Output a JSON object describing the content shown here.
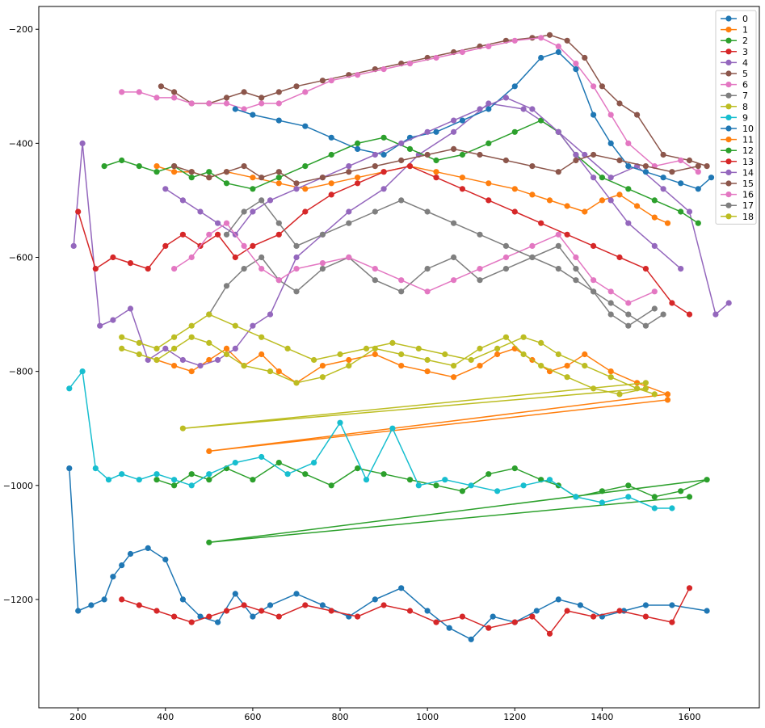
{
  "chart_data": {
    "type": "line",
    "title": "",
    "xlabel": "",
    "ylabel": "",
    "xlim": [
      110,
      1760
    ],
    "ylim": [
      -1390,
      -160
    ],
    "x_ticks": [
      200,
      400,
      600,
      800,
      1000,
      1200,
      1400,
      1600
    ],
    "y_ticks": [
      -200,
      -400,
      -600,
      -800,
      -1000,
      -1200
    ],
    "grid": false,
    "legend_position": "top-right",
    "series": [
      {
        "name": "0",
        "color": "#1f77b4",
        "x": [
          180,
          200,
          230,
          260,
          280,
          300,
          320,
          360,
          400,
          440,
          480,
          520,
          560,
          600,
          640,
          700,
          760,
          820,
          880,
          940,
          1000,
          1050,
          1100,
          1150,
          1200,
          1250,
          1300,
          1350,
          1400,
          1450,
          1500,
          1560,
          1640
        ],
        "y": [
          -970,
          -1220,
          -1210,
          -1200,
          -1160,
          -1140,
          -1120,
          -1110,
          -1130,
          -1200,
          -1230,
          -1240,
          -1190,
          -1230,
          -1210,
          -1190,
          -1210,
          -1230,
          -1200,
          -1180,
          -1220,
          -1250,
          -1270,
          -1230,
          -1240,
          -1220,
          -1200,
          -1210,
          -1230,
          -1220,
          -1210,
          -1210,
          -1220
        ]
      },
      {
        "name": "1",
        "color": "#ff7f0e",
        "x": [
          380,
          420,
          460,
          500,
          540,
          580,
          620,
          660,
          700,
          760,
          820,
          880,
          940,
          1000,
          1060,
          1120,
          1160,
          1200,
          1240,
          1280,
          1320,
          1360,
          1420,
          1480,
          1550,
          500,
          1550
        ],
        "y": [
          -780,
          -790,
          -800,
          -780,
          -760,
          -790,
          -770,
          -800,
          -820,
          -790,
          -780,
          -770,
          -790,
          -800,
          -810,
          -790,
          -770,
          -760,
          -780,
          -800,
          -790,
          -770,
          -800,
          -820,
          -840,
          -940,
          -850
        ]
      },
      {
        "name": "2",
        "color": "#2ca02c",
        "x": [
          380,
          420,
          460,
          500,
          540,
          600,
          660,
          720,
          780,
          840,
          900,
          960,
          1020,
          1080,
          1140,
          1200,
          1260,
          1300,
          1340,
          1400,
          1460,
          1520,
          1580,
          1640,
          500,
          1600
        ],
        "y": [
          -990,
          -1000,
          -980,
          -990,
          -970,
          -990,
          -960,
          -980,
          -1000,
          -970,
          -980,
          -990,
          -1000,
          -1010,
          -980,
          -970,
          -990,
          -1000,
          -1020,
          -1010,
          -1000,
          -1020,
          -1010,
          -990,
          -1100,
          -1020
        ]
      },
      {
        "name": "3",
        "color": "#d62728",
        "x": [
          300,
          340,
          380,
          420,
          460,
          500,
          540,
          580,
          620,
          660,
          720,
          780,
          840,
          900,
          960,
          1020,
          1080,
          1140,
          1200,
          1240,
          1280,
          1320,
          1380,
          1440,
          1500,
          1560,
          1600
        ],
        "y": [
          -1200,
          -1210,
          -1220,
          -1230,
          -1240,
          -1230,
          -1220,
          -1210,
          -1220,
          -1230,
          -1210,
          -1220,
          -1230,
          -1210,
          -1220,
          -1240,
          -1230,
          -1250,
          -1240,
          -1230,
          -1260,
          -1220,
          -1230,
          -1220,
          -1230,
          -1240,
          -1180
        ]
      },
      {
        "name": "4",
        "color": "#9467bd",
        "x": [
          190,
          210,
          250,
          280,
          320,
          360,
          400,
          440,
          480,
          520,
          560,
          600,
          640,
          700,
          760,
          820,
          900,
          980,
          1060,
          1140,
          1220,
          1300,
          1360,
          1420,
          1480,
          1540,
          1600,
          1660,
          1690
        ],
        "y": [
          -580,
          -400,
          -720,
          -710,
          -690,
          -780,
          -760,
          -780,
          -790,
          -780,
          -760,
          -720,
          -700,
          -600,
          -560,
          -520,
          -480,
          -420,
          -380,
          -330,
          -340,
          -380,
          -420,
          -460,
          -440,
          -480,
          -520,
          -700,
          -680
        ]
      },
      {
        "name": "5",
        "color": "#8c564b",
        "x": [
          390,
          420,
          460,
          500,
          540,
          580,
          620,
          660,
          700,
          760,
          820,
          880,
          940,
          1000,
          1060,
          1120,
          1180,
          1240,
          1280,
          1320,
          1360,
          1400,
          1440,
          1480,
          1540,
          1600,
          1640
        ],
        "y": [
          -300,
          -310,
          -330,
          -330,
          -320,
          -310,
          -320,
          -310,
          -300,
          -290,
          -280,
          -270,
          -260,
          -250,
          -240,
          -230,
          -220,
          -215,
          -210,
          -220,
          -250,
          -300,
          -330,
          -350,
          -420,
          -430,
          -440
        ]
      },
      {
        "name": "6",
        "color": "#e377c2",
        "x": [
          300,
          340,
          380,
          420,
          460,
          500,
          540,
          580,
          620,
          660,
          720,
          780,
          840,
          900,
          960,
          1020,
          1080,
          1140,
          1200,
          1260,
          1300,
          1340,
          1380,
          1420,
          1460,
          1520,
          1580,
          1620
        ],
        "y": [
          -310,
          -310,
          -320,
          -320,
          -330,
          -330,
          -330,
          -340,
          -330,
          -330,
          -310,
          -290,
          -280,
          -270,
          -260,
          -250,
          -240,
          -230,
          -220,
          -215,
          -230,
          -260,
          -300,
          -350,
          -400,
          -440,
          -430,
          -450
        ]
      },
      {
        "name": "7",
        "color": "#7f7f7f",
        "x": [
          500,
          540,
          580,
          620,
          660,
          700,
          760,
          820,
          880,
          940,
          1000,
          1060,
          1120,
          1180,
          1240,
          1300,
          1340,
          1380,
          1420,
          1460,
          1520
        ],
        "y": [
          -700,
          -650,
          -620,
          -600,
          -640,
          -660,
          -620,
          -600,
          -640,
          -660,
          -620,
          -600,
          -640,
          -620,
          -600,
          -580,
          -620,
          -660,
          -700,
          -720,
          -690
        ]
      },
      {
        "name": "8",
        "color": "#bcbd22",
        "x": [
          300,
          340,
          380,
          420,
          460,
          500,
          540,
          580,
          640,
          700,
          760,
          820,
          880,
          940,
          1000,
          1060,
          1120,
          1180,
          1220,
          1260,
          1320,
          1380,
          1440,
          1500,
          440,
          1500
        ],
        "y": [
          -760,
          -770,
          -780,
          -760,
          -740,
          -750,
          -770,
          -790,
          -800,
          -820,
          -810,
          -790,
          -760,
          -770,
          -780,
          -790,
          -760,
          -740,
          -770,
          -790,
          -810,
          -830,
          -840,
          -830,
          -900,
          -820
        ]
      },
      {
        "name": "9",
        "color": "#17becf",
        "x": [
          180,
          210,
          240,
          270,
          300,
          340,
          380,
          420,
          460,
          500,
          560,
          620,
          680,
          740,
          800,
          860,
          920,
          980,
          1040,
          1100,
          1160,
          1220,
          1280,
          1340,
          1400,
          1460,
          1520,
          1560
        ],
        "y": [
          -830,
          -800,
          -970,
          -990,
          -980,
          -990,
          -980,
          -990,
          -1000,
          -980,
          -960,
          -950,
          -980,
          -960,
          -890,
          -990,
          -900,
          -1000,
          -990,
          -1000,
          -1010,
          -1000,
          -990,
          -1020,
          -1030,
          -1020,
          -1040,
          -1040
        ]
      },
      {
        "name": "10",
        "color": "#1f77b4",
        "x": [
          560,
          600,
          660,
          720,
          780,
          840,
          900,
          960,
          1020,
          1080,
          1140,
          1200,
          1260,
          1300,
          1340,
          1380,
          1420,
          1460,
          1500,
          1540,
          1580,
          1620,
          1650
        ],
        "y": [
          -340,
          -350,
          -360,
          -370,
          -390,
          -410,
          -420,
          -390,
          -380,
          -360,
          -340,
          -300,
          -250,
          -240,
          -270,
          -350,
          -400,
          -440,
          -450,
          -460,
          -470,
          -480,
          -460
        ]
      },
      {
        "name": "11",
        "color": "#ff7f0e",
        "x": [
          380,
          420,
          460,
          500,
          540,
          600,
          660,
          720,
          780,
          840,
          900,
          960,
          1020,
          1080,
          1140,
          1200,
          1240,
          1280,
          1320,
          1360,
          1400,
          1440,
          1480,
          1520,
          1550
        ],
        "y": [
          -440,
          -450,
          -450,
          -460,
          -450,
          -460,
          -470,
          -480,
          -470,
          -460,
          -450,
          -440,
          -450,
          -460,
          -470,
          -480,
          -490,
          -500,
          -510,
          -520,
          -500,
          -490,
          -510,
          -530,
          -540
        ]
      },
      {
        "name": "12",
        "color": "#2ca02c",
        "x": [
          260,
          300,
          340,
          380,
          420,
          460,
          500,
          540,
          600,
          660,
          720,
          780,
          840,
          900,
          960,
          1020,
          1080,
          1140,
          1200,
          1260,
          1300,
          1340,
          1400,
          1460,
          1520,
          1580,
          1620
        ],
        "y": [
          -440,
          -430,
          -440,
          -450,
          -440,
          -460,
          -450,
          -470,
          -480,
          -460,
          -440,
          -420,
          -400,
          -390,
          -410,
          -430,
          -420,
          -400,
          -380,
          -360,
          -380,
          -420,
          -460,
          -480,
          -500,
          -520,
          -540
        ]
      },
      {
        "name": "13",
        "color": "#d62728",
        "x": [
          200,
          240,
          280,
          320,
          360,
          400,
          440,
          480,
          520,
          560,
          600,
          660,
          720,
          780,
          840,
          900,
          960,
          1020,
          1080,
          1140,
          1200,
          1260,
          1320,
          1380,
          1440,
          1500,
          1560,
          1600
        ],
        "y": [
          -520,
          -620,
          -600,
          -610,
          -620,
          -580,
          -560,
          -580,
          -560,
          -600,
          -580,
          -560,
          -520,
          -490,
          -470,
          -450,
          -440,
          -460,
          -480,
          -500,
          -520,
          -540,
          -560,
          -580,
          -600,
          -620,
          -680,
          -700
        ]
      },
      {
        "name": "14",
        "color": "#9467bd",
        "x": [
          400,
          440,
          480,
          520,
          560,
          600,
          640,
          700,
          760,
          820,
          880,
          940,
          1000,
          1060,
          1120,
          1180,
          1240,
          1300,
          1340,
          1380,
          1420,
          1460,
          1520,
          1580
        ],
        "y": [
          -480,
          -500,
          -520,
          -540,
          -560,
          -520,
          -500,
          -480,
          -460,
          -440,
          -420,
          -400,
          -380,
          -360,
          -340,
          -320,
          -340,
          -380,
          -420,
          -460,
          -500,
          -540,
          -580,
          -620
        ]
      },
      {
        "name": "15",
        "color": "#8c564b",
        "x": [
          420,
          460,
          500,
          540,
          580,
          620,
          660,
          700,
          760,
          820,
          880,
          940,
          1000,
          1060,
          1120,
          1180,
          1240,
          1300,
          1340,
          1380,
          1440,
          1500,
          1560,
          1620
        ],
        "y": [
          -440,
          -450,
          -460,
          -450,
          -440,
          -460,
          -450,
          -470,
          -460,
          -450,
          -440,
          -430,
          -420,
          -410,
          -420,
          -430,
          -440,
          -450,
          -430,
          -420,
          -430,
          -440,
          -450,
          -440
        ]
      },
      {
        "name": "16",
        "color": "#e377c2",
        "x": [
          420,
          460,
          500,
          540,
          580,
          620,
          660,
          700,
          760,
          820,
          880,
          940,
          1000,
          1060,
          1120,
          1180,
          1240,
          1300,
          1340,
          1380,
          1420,
          1460,
          1520
        ],
        "y": [
          -620,
          -600,
          -560,
          -540,
          -580,
          -620,
          -640,
          -620,
          -610,
          -600,
          -620,
          -640,
          -660,
          -640,
          -620,
          -600,
          -580,
          -560,
          -600,
          -640,
          -660,
          -680,
          -660
        ]
      },
      {
        "name": "17",
        "color": "#7f7f7f",
        "x": [
          540,
          580,
          620,
          660,
          700,
          760,
          820,
          880,
          940,
          1000,
          1060,
          1120,
          1180,
          1240,
          1300,
          1340,
          1380,
          1420,
          1460,
          1500,
          1540
        ],
        "y": [
          -560,
          -520,
          -500,
          -540,
          -580,
          -560,
          -540,
          -520,
          -500,
          -520,
          -540,
          -560,
          -580,
          -600,
          -620,
          -640,
          -660,
          -680,
          -700,
          -720,
          -700
        ]
      },
      {
        "name": "18",
        "color": "#bcbd22",
        "x": [
          300,
          340,
          380,
          420,
          460,
          500,
          560,
          620,
          680,
          740,
          800,
          860,
          920,
          980,
          1040,
          1100,
          1160,
          1220,
          1260,
          1300,
          1360,
          1420,
          1480,
          1520
        ],
        "y": [
          -740,
          -750,
          -760,
          -740,
          -720,
          -700,
          -720,
          -740,
          -760,
          -780,
          -770,
          -760,
          -750,
          -760,
          -770,
          -780,
          -760,
          -740,
          -750,
          -770,
          -790,
          -810,
          -830,
          -840
        ]
      }
    ]
  }
}
